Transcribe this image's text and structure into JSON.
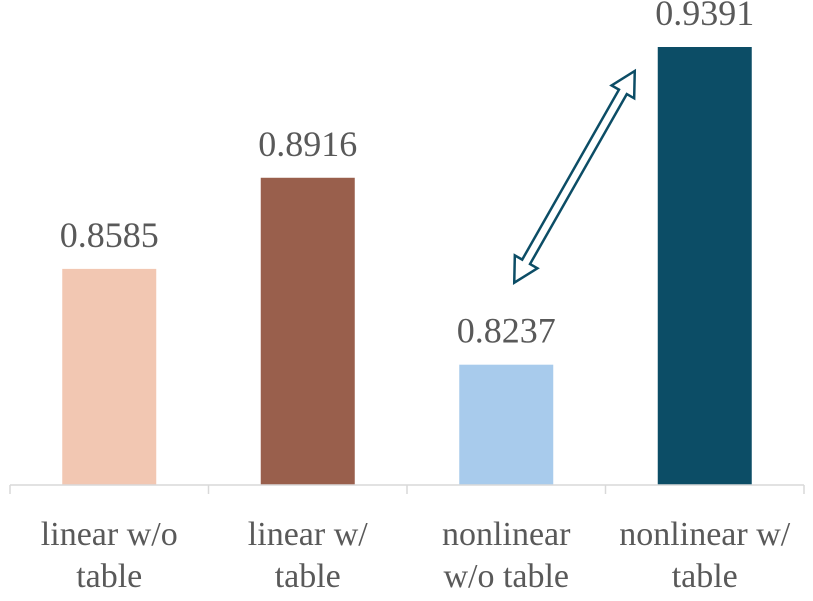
{
  "chart_data": {
    "type": "bar",
    "categories": [
      [
        "linear w/o",
        "table"
      ],
      [
        "linear w/",
        "table"
      ],
      [
        "nonlinear",
        "w/o table"
      ],
      [
        "nonlinear w/",
        "table"
      ]
    ],
    "values": [
      0.8585,
      0.8916,
      0.8237,
      0.9391
    ],
    "value_labels": [
      "0.8585",
      "0.8916",
      "0.8237",
      "0.9391"
    ],
    "colors": [
      "#f2c7b2",
      "#995f4c",
      "#a8cbec",
      "#0c4d66"
    ],
    "ylim": [
      0.78,
      0.9391
    ],
    "title": "",
    "xlabel": "",
    "ylabel": "",
    "grid": false,
    "legend": "none",
    "annotation": {
      "type": "double-arrow",
      "from_category": 2,
      "to_category": 3,
      "color": "#0c4d66"
    }
  }
}
